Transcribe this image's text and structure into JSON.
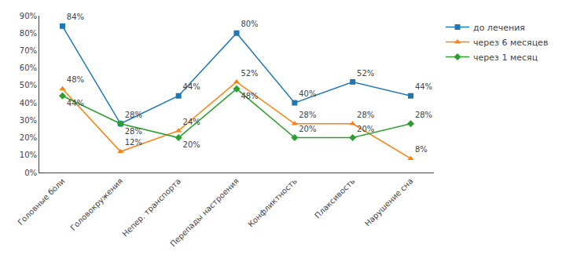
{
  "chart_data": {
    "type": "line",
    "categories": [
      "Головные боли",
      "Головокружения",
      "Непер. транспорта",
      "Перепады настроения",
      "Конфликтность",
      "Плаксивость",
      "Нарушение сна"
    ],
    "series": [
      {
        "name": "до лечения",
        "marker": "square",
        "values": [
          84,
          28,
          44,
          80,
          40,
          52,
          44
        ],
        "value_labels": [
          "84%",
          "28%",
          "44%",
          "80%",
          "40%",
          "52%",
          "44%"
        ]
      },
      {
        "name": "через 6 месяцев",
        "marker": "triangle",
        "values": [
          48,
          12,
          24,
          52,
          28,
          28,
          8
        ],
        "value_labels": [
          "48%",
          "12%",
          "24%",
          "52%",
          "28%",
          "28%",
          "8%"
        ]
      },
      {
        "name": "через 1 месяц",
        "marker": "diamond",
        "values": [
          44,
          28,
          20,
          48,
          20,
          20,
          28
        ],
        "value_labels": [
          "44%",
          "28%",
          "20%",
          "48%",
          "20%",
          "20%",
          "28%"
        ]
      }
    ],
    "ylim": [
      0,
      90
    ],
    "yticks": [
      {
        "value": 0,
        "label": "0%"
      },
      {
        "value": 10,
        "label": "10%"
      },
      {
        "value": 20,
        "label": "20%"
      },
      {
        "value": 30,
        "label": "30%"
      },
      {
        "value": 40,
        "label": "40%"
      },
      {
        "value": 50,
        "label": "50%"
      },
      {
        "value": 60,
        "label": "60%"
      },
      {
        "value": 70,
        "label": "70%"
      },
      {
        "value": 80,
        "label": "80%"
      },
      {
        "value": 90,
        "label": "90%"
      }
    ],
    "grid": false,
    "legend": "right",
    "data_labels": true,
    "line_style": "solid"
  }
}
